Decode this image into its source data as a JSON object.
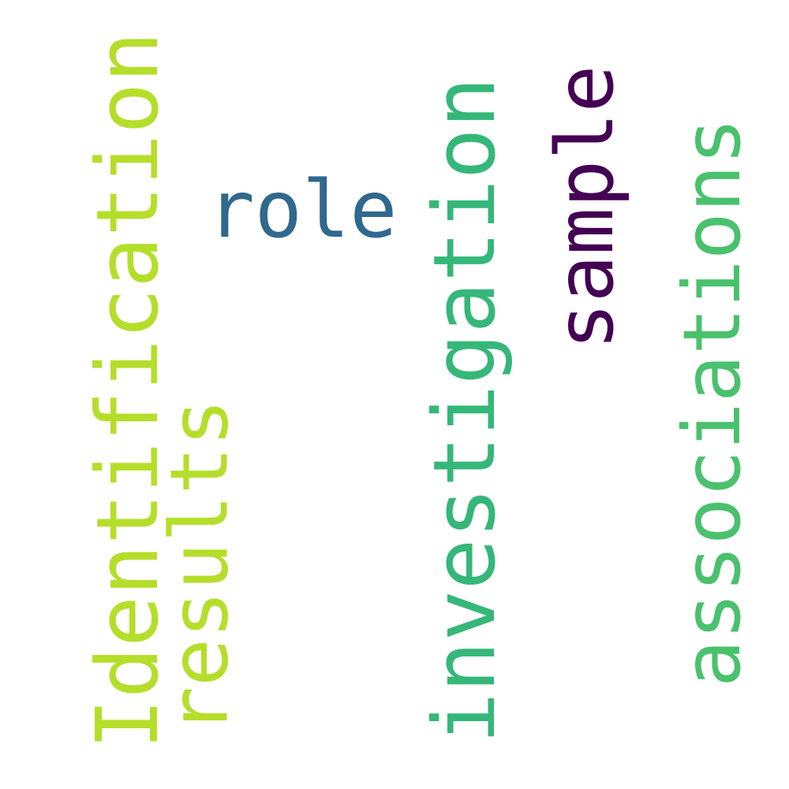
{
  "words": [
    {
      "id": "identification",
      "text": "Identification",
      "color": "#b5de2b",
      "orientation": "vertical"
    },
    {
      "id": "results",
      "text": "results",
      "color": "#b5de2b",
      "orientation": "vertical"
    },
    {
      "id": "role",
      "text": "role",
      "color": "#31688e",
      "orientation": "horizontal"
    },
    {
      "id": "investigation",
      "text": "investigation",
      "color": "#35b779",
      "orientation": "vertical"
    },
    {
      "id": "sample",
      "text": "sample",
      "color": "#440154",
      "orientation": "vertical"
    },
    {
      "id": "associations",
      "text": "associations",
      "color": "#4ac16d",
      "orientation": "vertical"
    }
  ],
  "background_color": "#ffffff"
}
